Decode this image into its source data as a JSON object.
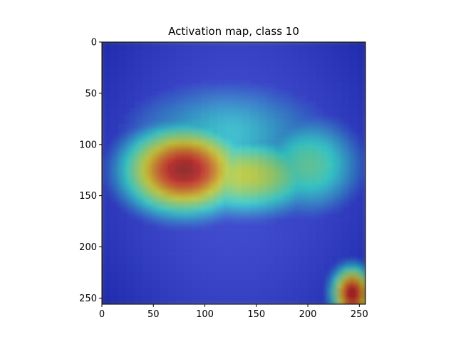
{
  "chart_data": {
    "type": "heatmap",
    "title": "Activation map, class 10",
    "xlabel": "",
    "ylabel": "",
    "image_size": [
      256,
      256
    ],
    "xlim": [
      0,
      256
    ],
    "ylim": [
      256,
      0
    ],
    "x_ticks": [
      0,
      50,
      100,
      150,
      200,
      250
    ],
    "y_ticks": [
      0,
      50,
      100,
      150,
      200,
      250
    ],
    "colormap": "jet",
    "overlay_alpha": 0.5,
    "background": "grayscale chest x-ray",
    "activation_peaks": [
      {
        "x": 80,
        "y": 125,
        "intensity": 0.95,
        "sx": 42,
        "sy": 30
      },
      {
        "x": 140,
        "y": 130,
        "intensity": 0.6,
        "sx": 55,
        "sy": 28
      },
      {
        "x": 200,
        "y": 120,
        "intensity": 0.45,
        "sx": 40,
        "sy": 35
      },
      {
        "x": 120,
        "y": 90,
        "intensity": 0.35,
        "sx": 80,
        "sy": 40
      },
      {
        "x": 243,
        "y": 245,
        "intensity": 0.95,
        "sx": 14,
        "sy": 18
      }
    ]
  }
}
